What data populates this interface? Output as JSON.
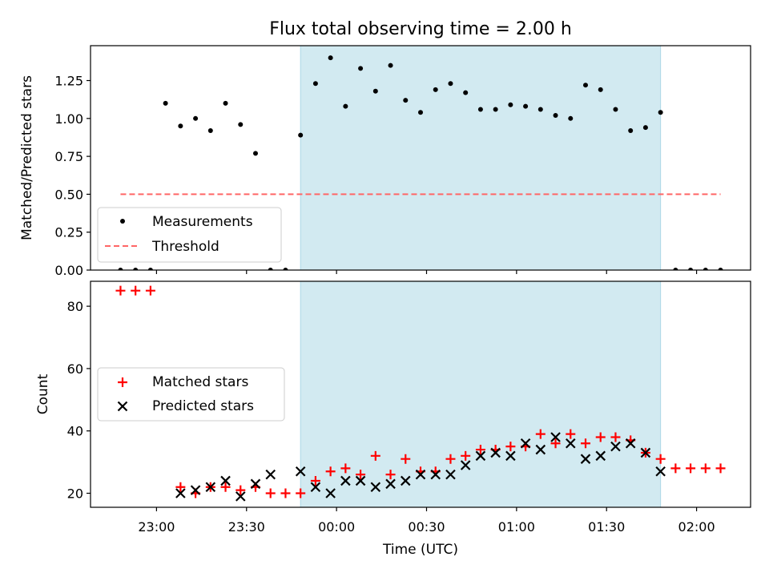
{
  "title": "Flux total observing time = 2.00 h",
  "xlabel": "Time (UTC)",
  "x_ticks": [
    "23:00",
    "23:30",
    "00:00",
    "00:30",
    "01:00",
    "01:30",
    "02:00"
  ],
  "x_tick_minutes": [
    -60,
    -30,
    0,
    30,
    60,
    90,
    120
  ],
  "xlim_minutes": [
    -82,
    138
  ],
  "time_reference": "00:00 UTC",
  "colors": {
    "shade": "#add8e6",
    "measurements": "#000000",
    "threshold": "#ff6666",
    "matched": "#ff0000",
    "predicted": "#000000"
  },
  "chart_data": [
    {
      "type": "scatter",
      "ylabel": "Matched/Predicted stars",
      "ylim": [
        0,
        1.48
      ],
      "y_ticks": [
        "0.00",
        "0.25",
        "0.50",
        "0.75",
        "1.00",
        "1.25"
      ],
      "y_tick_values": [
        0,
        0.25,
        0.5,
        0.75,
        1.0,
        1.25
      ],
      "shaded_region": [
        -12,
        108
      ],
      "legend_placement": "lower-left",
      "series": [
        {
          "name": "Measurements",
          "x": [
            -72,
            -67,
            -62,
            -57,
            -52,
            -47,
            -42,
            -37,
            -32,
            -27,
            -22,
            -17,
            -12,
            -7,
            -2,
            3,
            8,
            13,
            18,
            23,
            28,
            33,
            38,
            43,
            48,
            53,
            58,
            63,
            68,
            73,
            78,
            83,
            88,
            93,
            98,
            103,
            108,
            113,
            118,
            123,
            128
          ],
          "y": [
            0,
            0,
            0,
            1.1,
            0.95,
            1.0,
            0.92,
            1.1,
            0.96,
            0.77,
            0,
            0,
            0.89,
            1.23,
            1.4,
            1.08,
            1.33,
            1.18,
            1.35,
            1.12,
            1.04,
            1.19,
            1.23,
            1.17,
            1.06,
            1.06,
            1.09,
            1.08,
            1.06,
            1.02,
            1.0,
            1.22,
            1.19,
            1.06,
            0.92,
            0.94,
            1.04,
            0,
            0,
            0,
            0
          ]
        },
        {
          "name": "Threshold",
          "x": [
            -72,
            128
          ],
          "y": [
            0.5,
            0.5
          ]
        }
      ]
    },
    {
      "type": "scatter",
      "ylabel": "Count",
      "ylim": [
        15.5,
        88
      ],
      "y_ticks": [
        "20",
        "40",
        "60",
        "80"
      ],
      "y_tick_values": [
        20,
        40,
        60,
        80
      ],
      "shaded_region": [
        -12,
        108
      ],
      "legend_placement": "center-left",
      "series": [
        {
          "name": "Matched stars",
          "x": [
            -72,
            -67,
            -62,
            -52,
            -47,
            -42,
            -37,
            -32,
            -27,
            -22,
            -17,
            -12,
            -7,
            -2,
            3,
            8,
            13,
            18,
            23,
            28,
            33,
            38,
            43,
            48,
            53,
            58,
            63,
            68,
            73,
            78,
            83,
            88,
            93,
            98,
            103,
            108,
            113,
            118,
            123,
            128
          ],
          "y": [
            85,
            85,
            85,
            22,
            20,
            22,
            22,
            21,
            22,
            20,
            20,
            20,
            24,
            27,
            28,
            26,
            32,
            26,
            31,
            27,
            27,
            31,
            32,
            34,
            34,
            35,
            35,
            39,
            36,
            39,
            36,
            38,
            38,
            37,
            33,
            31,
            28,
            28,
            28,
            28
          ]
        },
        {
          "name": "Predicted stars",
          "x": [
            -52,
            -47,
            -42,
            -37,
            -32,
            -27,
            -22,
            -12,
            -7,
            -2,
            3,
            8,
            13,
            18,
            23,
            28,
            33,
            38,
            43,
            48,
            53,
            58,
            63,
            68,
            73,
            78,
            83,
            88,
            93,
            98,
            103,
            108
          ],
          "y": [
            20,
            21,
            22,
            24,
            19,
            23,
            26,
            27,
            22,
            20,
            24,
            24,
            22,
            23,
            24,
            26,
            26,
            26,
            29,
            32,
            33,
            32,
            36,
            34,
            38,
            36,
            31,
            32,
            35,
            36,
            33,
            27
          ]
        }
      ]
    }
  ]
}
